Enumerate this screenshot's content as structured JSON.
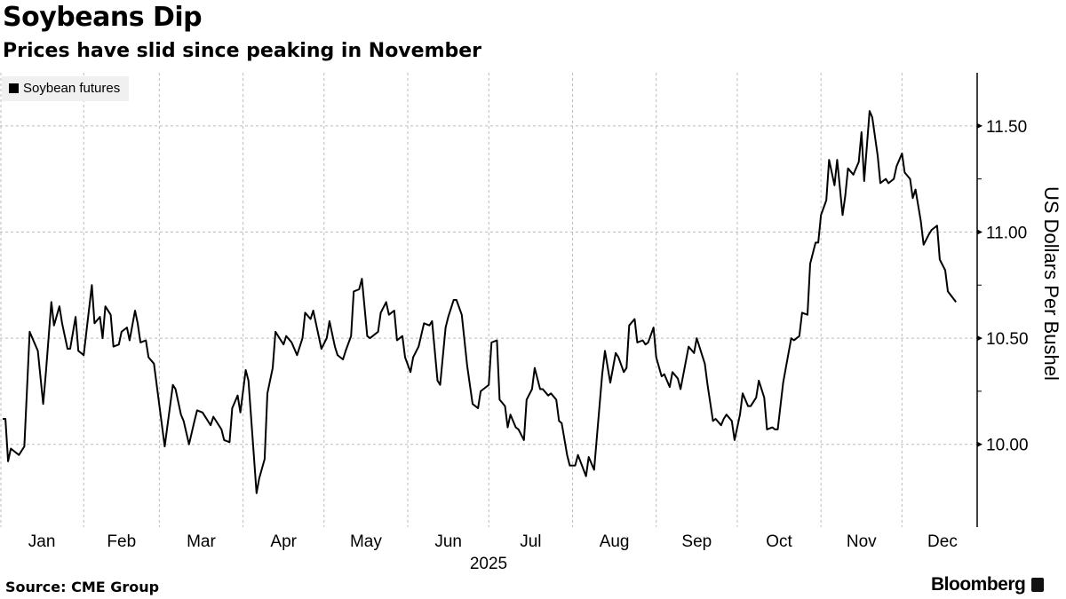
{
  "chart_data": {
    "type": "line",
    "title": "Soybeans Dip",
    "subtitle": "Prices have slid since peaking in November",
    "ylabel": "US Dollars Per Bushel",
    "xlabel": "2025",
    "ylim": [
      9.61,
      11.75
    ],
    "xlim": [
      "2025-01-01",
      "2025-12-31"
    ],
    "y_ticks": [
      "10.00",
      "10.50",
      "11.00",
      "11.50"
    ],
    "y_tick_values": [
      10.0,
      10.5,
      11.0,
      11.5
    ],
    "x_ticks": [
      "Jan",
      "Feb",
      "Mar",
      "Apr",
      "May",
      "Jun",
      "Jul",
      "Aug",
      "Sep",
      "Oct",
      "Nov",
      "Dec"
    ],
    "grid": true,
    "legend_placement": "top-left",
    "series": [
      {
        "name": "Soybean futures",
        "color": "#000000",
        "points": [
          [
            "2025-01-02",
            10.12
          ],
          [
            "2025-01-03",
            10.12
          ],
          [
            "2025-01-04",
            9.92
          ],
          [
            "2025-01-05",
            9.98
          ],
          [
            "2025-01-06",
            9.97
          ],
          [
            "2025-01-08",
            9.95
          ],
          [
            "2025-01-10",
            9.99
          ],
          [
            "2025-01-12",
            10.53
          ],
          [
            "2025-01-15",
            10.44
          ],
          [
            "2025-01-17",
            10.19
          ],
          [
            "2025-01-18",
            10.34
          ],
          [
            "2025-01-20",
            10.67
          ],
          [
            "2025-01-21",
            10.56
          ],
          [
            "2025-01-23",
            10.65
          ],
          [
            "2025-01-24",
            10.57
          ],
          [
            "2025-01-26",
            10.45
          ],
          [
            "2025-01-27",
            10.45
          ],
          [
            "2025-01-29",
            10.6
          ],
          [
            "2025-01-30",
            10.44
          ],
          [
            "2025-02-01",
            10.42
          ],
          [
            "2025-02-04",
            10.75
          ],
          [
            "2025-02-05",
            10.57
          ],
          [
            "2025-02-07",
            10.6
          ],
          [
            "2025-02-08",
            10.5
          ],
          [
            "2025-02-09",
            10.65
          ],
          [
            "2025-02-11",
            10.61
          ],
          [
            "2025-02-12",
            10.46
          ],
          [
            "2025-02-14",
            10.47
          ],
          [
            "2025-02-15",
            10.53
          ],
          [
            "2025-02-17",
            10.55
          ],
          [
            "2025-02-18",
            10.49
          ],
          [
            "2025-02-20",
            10.63
          ],
          [
            "2025-02-21",
            10.57
          ],
          [
            "2025-02-22",
            10.48
          ],
          [
            "2025-02-24",
            10.49
          ],
          [
            "2025-02-25",
            10.41
          ],
          [
            "2025-02-27",
            10.38
          ],
          [
            "2025-03-03",
            9.99
          ],
          [
            "2025-03-06",
            10.28
          ],
          [
            "2025-03-07",
            10.26
          ],
          [
            "2025-03-09",
            10.14
          ],
          [
            "2025-03-10",
            10.11
          ],
          [
            "2025-03-12",
            10.0
          ],
          [
            "2025-03-14",
            10.11
          ],
          [
            "2025-03-15",
            10.16
          ],
          [
            "2025-03-17",
            10.15
          ],
          [
            "2025-03-20",
            10.09
          ],
          [
            "2025-03-21",
            10.13
          ],
          [
            "2025-03-24",
            10.07
          ],
          [
            "2025-03-25",
            10.02
          ],
          [
            "2025-03-27",
            10.01
          ],
          [
            "2025-03-28",
            10.17
          ],
          [
            "2025-03-30",
            10.23
          ],
          [
            "2025-03-31",
            10.15
          ],
          [
            "2025-04-02",
            10.35
          ],
          [
            "2025-04-03",
            10.3
          ],
          [
            "2025-04-06",
            9.77
          ],
          [
            "2025-04-07",
            9.84
          ],
          [
            "2025-04-09",
            9.93
          ],
          [
            "2025-04-10",
            10.24
          ],
          [
            "2025-04-12",
            10.36
          ],
          [
            "2025-04-13",
            10.53
          ],
          [
            "2025-04-16",
            10.47
          ],
          [
            "2025-04-17",
            10.51
          ],
          [
            "2025-04-19",
            10.48
          ],
          [
            "2025-04-21",
            10.42
          ],
          [
            "2025-04-23",
            10.5
          ],
          [
            "2025-04-24",
            10.62
          ],
          [
            "2025-04-26",
            10.59
          ],
          [
            "2025-04-27",
            10.63
          ],
          [
            "2025-04-30",
            10.45
          ],
          [
            "2025-05-02",
            10.5
          ],
          [
            "2025-05-03",
            10.58
          ],
          [
            "2025-05-05",
            10.46
          ],
          [
            "2025-05-06",
            10.42
          ],
          [
            "2025-05-08",
            10.4
          ],
          [
            "2025-05-09",
            10.44
          ],
          [
            "2025-05-11",
            10.51
          ],
          [
            "2025-05-12",
            10.72
          ],
          [
            "2025-05-14",
            10.73
          ],
          [
            "2025-05-15",
            10.78
          ],
          [
            "2025-05-17",
            10.51
          ],
          [
            "2025-05-18",
            10.5
          ],
          [
            "2025-05-19",
            10.51
          ],
          [
            "2025-05-21",
            10.53
          ],
          [
            "2025-05-22",
            10.62
          ],
          [
            "2025-05-24",
            10.67
          ],
          [
            "2025-05-25",
            10.61
          ],
          [
            "2025-05-27",
            10.63
          ],
          [
            "2025-05-28",
            10.49
          ],
          [
            "2025-05-30",
            10.51
          ],
          [
            "2025-05-31",
            10.41
          ],
          [
            "2025-06-02",
            10.34
          ],
          [
            "2025-06-03",
            10.41
          ],
          [
            "2025-06-05",
            10.46
          ],
          [
            "2025-06-07",
            10.57
          ],
          [
            "2025-06-09",
            10.56
          ],
          [
            "2025-06-10",
            10.58
          ],
          [
            "2025-06-12",
            10.3
          ],
          [
            "2025-06-13",
            10.28
          ],
          [
            "2025-06-15",
            10.55
          ],
          [
            "2025-06-16",
            10.6
          ],
          [
            "2025-06-18",
            10.68
          ],
          [
            "2025-06-19",
            10.68
          ],
          [
            "2025-06-21",
            10.61
          ],
          [
            "2025-06-23",
            10.37
          ],
          [
            "2025-06-25",
            10.19
          ],
          [
            "2025-06-27",
            10.17
          ],
          [
            "2025-06-28",
            10.25
          ],
          [
            "2025-06-30",
            10.27
          ],
          [
            "2025-07-01",
            10.28
          ],
          [
            "2025-07-02",
            10.48
          ],
          [
            "2025-07-04",
            10.49
          ],
          [
            "2025-07-05",
            10.21
          ],
          [
            "2025-07-07",
            10.18
          ],
          [
            "2025-07-08",
            10.08
          ],
          [
            "2025-07-09",
            10.14
          ],
          [
            "2025-07-11",
            10.08
          ],
          [
            "2025-07-12",
            10.07
          ],
          [
            "2025-07-14",
            10.02
          ],
          [
            "2025-07-15",
            10.21
          ],
          [
            "2025-07-17",
            10.26
          ],
          [
            "2025-07-18",
            10.36
          ],
          [
            "2025-07-20",
            10.26
          ],
          [
            "2025-07-21",
            10.26
          ],
          [
            "2025-07-23",
            10.23
          ],
          [
            "2025-07-24",
            10.24
          ],
          [
            "2025-07-26",
            10.21
          ],
          [
            "2025-07-27",
            10.11
          ],
          [
            "2025-07-28",
            10.1
          ],
          [
            "2025-07-30",
            9.95
          ],
          [
            "2025-07-31",
            9.9
          ],
          [
            "2025-08-02",
            9.9
          ],
          [
            "2025-08-03",
            9.95
          ],
          [
            "2025-08-06",
            9.85
          ],
          [
            "2025-08-07",
            9.94
          ],
          [
            "2025-08-09",
            9.88
          ],
          [
            "2025-08-12",
            10.33
          ],
          [
            "2025-08-13",
            10.44
          ],
          [
            "2025-08-15",
            10.29
          ],
          [
            "2025-08-17",
            10.43
          ],
          [
            "2025-08-18",
            10.41
          ],
          [
            "2025-08-20",
            10.34
          ],
          [
            "2025-08-21",
            10.36
          ],
          [
            "2025-08-22",
            10.56
          ],
          [
            "2025-08-24",
            10.59
          ],
          [
            "2025-08-25",
            10.48
          ],
          [
            "2025-08-27",
            10.49
          ],
          [
            "2025-08-28",
            10.47
          ],
          [
            "2025-08-29",
            10.48
          ],
          [
            "2025-08-31",
            10.55
          ],
          [
            "2025-09-01",
            10.41
          ],
          [
            "2025-09-03",
            10.32
          ],
          [
            "2025-09-04",
            10.33
          ],
          [
            "2025-09-06",
            10.27
          ],
          [
            "2025-09-07",
            10.34
          ],
          [
            "2025-09-09",
            10.31
          ],
          [
            "2025-09-10",
            10.26
          ],
          [
            "2025-09-13",
            10.46
          ],
          [
            "2025-09-15",
            10.43
          ],
          [
            "2025-09-16",
            10.5
          ],
          [
            "2025-09-19",
            10.38
          ],
          [
            "2025-09-20",
            10.28
          ],
          [
            "2025-09-22",
            10.11
          ],
          [
            "2025-09-23",
            10.12
          ],
          [
            "2025-09-25",
            10.09
          ],
          [
            "2025-09-26",
            10.12
          ],
          [
            "2025-09-27",
            10.14
          ],
          [
            "2025-09-29",
            10.11
          ],
          [
            "2025-09-30",
            10.02
          ],
          [
            "2025-10-02",
            10.14
          ],
          [
            "2025-10-03",
            10.24
          ],
          [
            "2025-10-05",
            10.18
          ],
          [
            "2025-10-06",
            10.18
          ],
          [
            "2025-10-08",
            10.22
          ],
          [
            "2025-10-09",
            10.3
          ],
          [
            "2025-10-11",
            10.22
          ],
          [
            "2025-10-12",
            10.07
          ],
          [
            "2025-10-14",
            10.08
          ],
          [
            "2025-10-15",
            10.07
          ],
          [
            "2025-10-16",
            10.07
          ],
          [
            "2025-10-18",
            10.29
          ],
          [
            "2025-10-19",
            10.36
          ],
          [
            "2025-10-21",
            10.5
          ],
          [
            "2025-10-22",
            10.49
          ],
          [
            "2025-10-24",
            10.51
          ],
          [
            "2025-10-25",
            10.62
          ],
          [
            "2025-10-27",
            10.61
          ],
          [
            "2025-10-28",
            10.85
          ],
          [
            "2025-10-30",
            10.95
          ],
          [
            "2025-10-31",
            10.95
          ],
          [
            "2025-11-01",
            11.08
          ],
          [
            "2025-11-03",
            11.15
          ],
          [
            "2025-11-04",
            11.34
          ],
          [
            "2025-11-06",
            11.22
          ],
          [
            "2025-11-07",
            11.34
          ],
          [
            "2025-11-09",
            11.08
          ],
          [
            "2025-11-10",
            11.17
          ],
          [
            "2025-11-11",
            11.3
          ],
          [
            "2025-11-13",
            11.27
          ],
          [
            "2025-11-15",
            11.33
          ],
          [
            "2025-11-16",
            11.47
          ],
          [
            "2025-11-17",
            11.24
          ],
          [
            "2025-11-19",
            11.57
          ],
          [
            "2025-11-20",
            11.54
          ],
          [
            "2025-11-22",
            11.36
          ],
          [
            "2025-11-23",
            11.23
          ],
          [
            "2025-11-25",
            11.25
          ],
          [
            "2025-11-26",
            11.23
          ],
          [
            "2025-11-28",
            11.25
          ],
          [
            "2025-11-29",
            11.31
          ],
          [
            "2025-12-01",
            11.37
          ],
          [
            "2025-12-02",
            11.28
          ],
          [
            "2025-12-04",
            11.25
          ],
          [
            "2025-12-05",
            11.16
          ],
          [
            "2025-12-06",
            11.2
          ],
          [
            "2025-12-08",
            11.05
          ],
          [
            "2025-12-09",
            10.94
          ],
          [
            "2025-12-11",
            10.99
          ],
          [
            "2025-12-12",
            11.01
          ],
          [
            "2025-12-14",
            11.03
          ],
          [
            "2025-12-15",
            10.87
          ],
          [
            "2025-12-17",
            10.82
          ],
          [
            "2025-12-18",
            10.72
          ],
          [
            "2025-12-21",
            10.67
          ]
        ]
      }
    ]
  },
  "footer": {
    "source": "Source: CME Group",
    "brand": "Bloomberg",
    "brand_icon": "bloomberg-chart-icon"
  }
}
